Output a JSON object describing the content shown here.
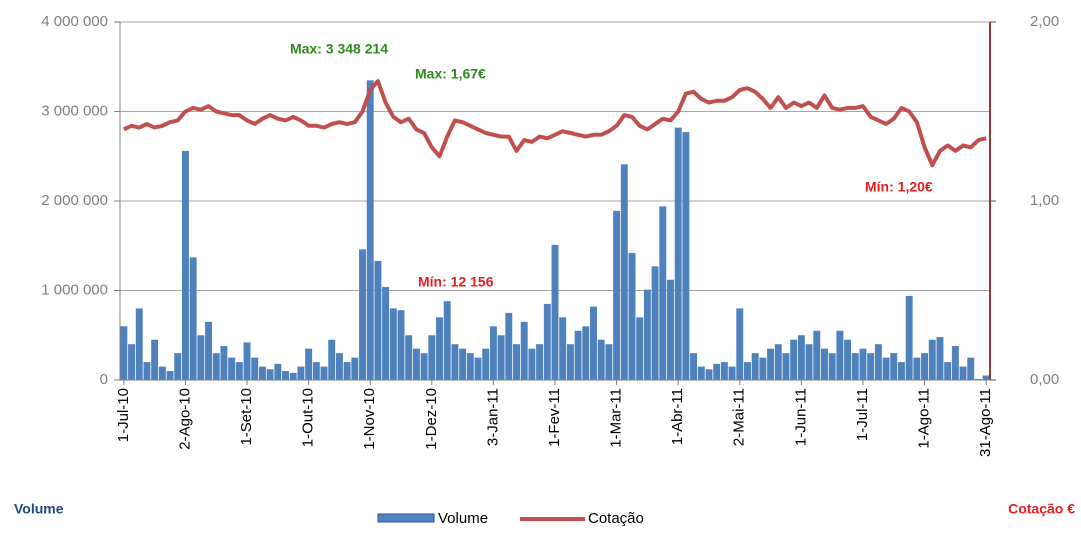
{
  "chart_data": {
    "type": "bar-line",
    "categories": [
      "1-Jul-10",
      null,
      null,
      null,
      null,
      null,
      null,
      null,
      "2-Ago-10",
      null,
      null,
      null,
      null,
      null,
      null,
      null,
      "1-Set-10",
      null,
      null,
      null,
      null,
      null,
      null,
      null,
      "1-Out-10",
      null,
      null,
      null,
      null,
      null,
      null,
      null,
      "1-Nov-10",
      null,
      null,
      null,
      null,
      null,
      null,
      null,
      "1-Dez-10",
      null,
      null,
      null,
      null,
      null,
      null,
      null,
      "3-Jan-11",
      null,
      null,
      null,
      null,
      null,
      null,
      null,
      "1-Fev-11",
      null,
      null,
      null,
      null,
      null,
      null,
      null,
      "1-Mar-11",
      null,
      null,
      null,
      null,
      null,
      null,
      null,
      "1-Abr-11",
      null,
      null,
      null,
      null,
      null,
      null,
      null,
      "2-Mai-11",
      null,
      null,
      null,
      null,
      null,
      null,
      null,
      "1-Jun-11",
      null,
      null,
      null,
      null,
      null,
      null,
      null,
      "1-Jul-11",
      null,
      null,
      null,
      null,
      null,
      null,
      null,
      "1-Ago-11",
      null,
      null,
      null,
      null,
      null,
      null,
      null,
      "31-Ago-11"
    ],
    "series": [
      {
        "name": "Volume",
        "color": "#4f81bd",
        "kind": "bar",
        "axis": "y",
        "values": [
          600000,
          400000,
          800000,
          200000,
          450000,
          150000,
          100000,
          300000,
          2560000,
          1370000,
          500000,
          650000,
          300000,
          380000,
          250000,
          200000,
          420000,
          250000,
          150000,
          120000,
          180000,
          100000,
          80000,
          150000,
          350000,
          200000,
          150000,
          450000,
          300000,
          200000,
          250000,
          1460000,
          3348214,
          1330000,
          1040000,
          800000,
          780000,
          500000,
          350000,
          300000,
          500000,
          700000,
          880000,
          400000,
          350000,
          300000,
          250000,
          350000,
          600000,
          500000,
          750000,
          400000,
          650000,
          350000,
          400000,
          850000,
          1510000,
          700000,
          400000,
          550000,
          600000,
          820000,
          450000,
          400000,
          1890000,
          2410000,
          1420000,
          700000,
          1010000,
          1270000,
          1940000,
          1120000,
          2820000,
          2770000,
          300000,
          150000,
          120000,
          180000,
          200000,
          150000,
          800000,
          200000,
          300000,
          250000,
          350000,
          400000,
          300000,
          450000,
          500000,
          400000,
          550000,
          350000,
          300000,
          550000,
          450000,
          300000,
          350000,
          300000,
          400000,
          250000,
          300000,
          200000,
          940000,
          250000,
          300000,
          450000,
          480000,
          200000,
          380000,
          150000,
          250000,
          12156,
          50000
        ]
      },
      {
        "name": "Cotação",
        "color": "#c0504d",
        "kind": "line",
        "axis": "y2",
        "values": [
          1.4,
          1.42,
          1.41,
          1.43,
          1.41,
          1.42,
          1.44,
          1.45,
          1.5,
          1.52,
          1.51,
          1.53,
          1.5,
          1.49,
          1.48,
          1.48,
          1.45,
          1.43,
          1.46,
          1.48,
          1.46,
          1.45,
          1.47,
          1.45,
          1.42,
          1.42,
          1.41,
          1.43,
          1.44,
          1.43,
          1.44,
          1.5,
          1.62,
          1.67,
          1.55,
          1.47,
          1.44,
          1.46,
          1.4,
          1.38,
          1.3,
          1.25,
          1.36,
          1.45,
          1.44,
          1.42,
          1.4,
          1.38,
          1.37,
          1.36,
          1.36,
          1.28,
          1.34,
          1.33,
          1.36,
          1.35,
          1.37,
          1.39,
          1.38,
          1.37,
          1.36,
          1.37,
          1.37,
          1.39,
          1.42,
          1.48,
          1.47,
          1.42,
          1.4,
          1.43,
          1.46,
          1.45,
          1.5,
          1.6,
          1.61,
          1.57,
          1.55,
          1.56,
          1.56,
          1.58,
          1.62,
          1.63,
          1.61,
          1.57,
          1.52,
          1.58,
          1.52,
          1.55,
          1.53,
          1.55,
          1.52,
          1.59,
          1.52,
          1.51,
          1.52,
          1.52,
          1.53,
          1.47,
          1.45,
          1.43,
          1.46,
          1.52,
          1.5,
          1.44,
          1.3,
          1.2,
          1.28,
          1.31,
          1.28,
          1.31,
          1.3,
          1.34,
          1.35
        ]
      }
    ],
    "ylim": [
      0,
      4000000
    ],
    "yticks": [
      0,
      {
        "value": 1000000,
        "label": "1 000 000"
      },
      {
        "value": 2000000,
        "label": "2 000 000"
      },
      {
        "value": 3000000,
        "label": "3 000 000"
      },
      {
        "value": 4000000,
        "label": "4 000 000"
      }
    ],
    "y2lim": [
      0,
      2
    ],
    "y2ticks": [
      {
        "value": 0,
        "label": "0,00"
      },
      {
        "value": 1,
        "label": "1,00"
      },
      {
        "value": 2,
        "label": "2,00"
      }
    ],
    "grid": true,
    "y_label": "Volume",
    "y_label_color": "#1f497d",
    "y2_label": "Cotação €",
    "y2_label_color": "#e02020",
    "y2_axis_color": "#943634",
    "legend": "bottom",
    "annotations": [
      {
        "text": "Max: 3 348 214",
        "color": "#2e8b1e"
      },
      {
        "text": "Max: 1,67€",
        "color": "#2e8b1e"
      },
      {
        "text": "Mín: 1,20€",
        "color": "#e02020"
      },
      {
        "text": "Mín: 12 156",
        "color": "#e02020"
      }
    ]
  }
}
